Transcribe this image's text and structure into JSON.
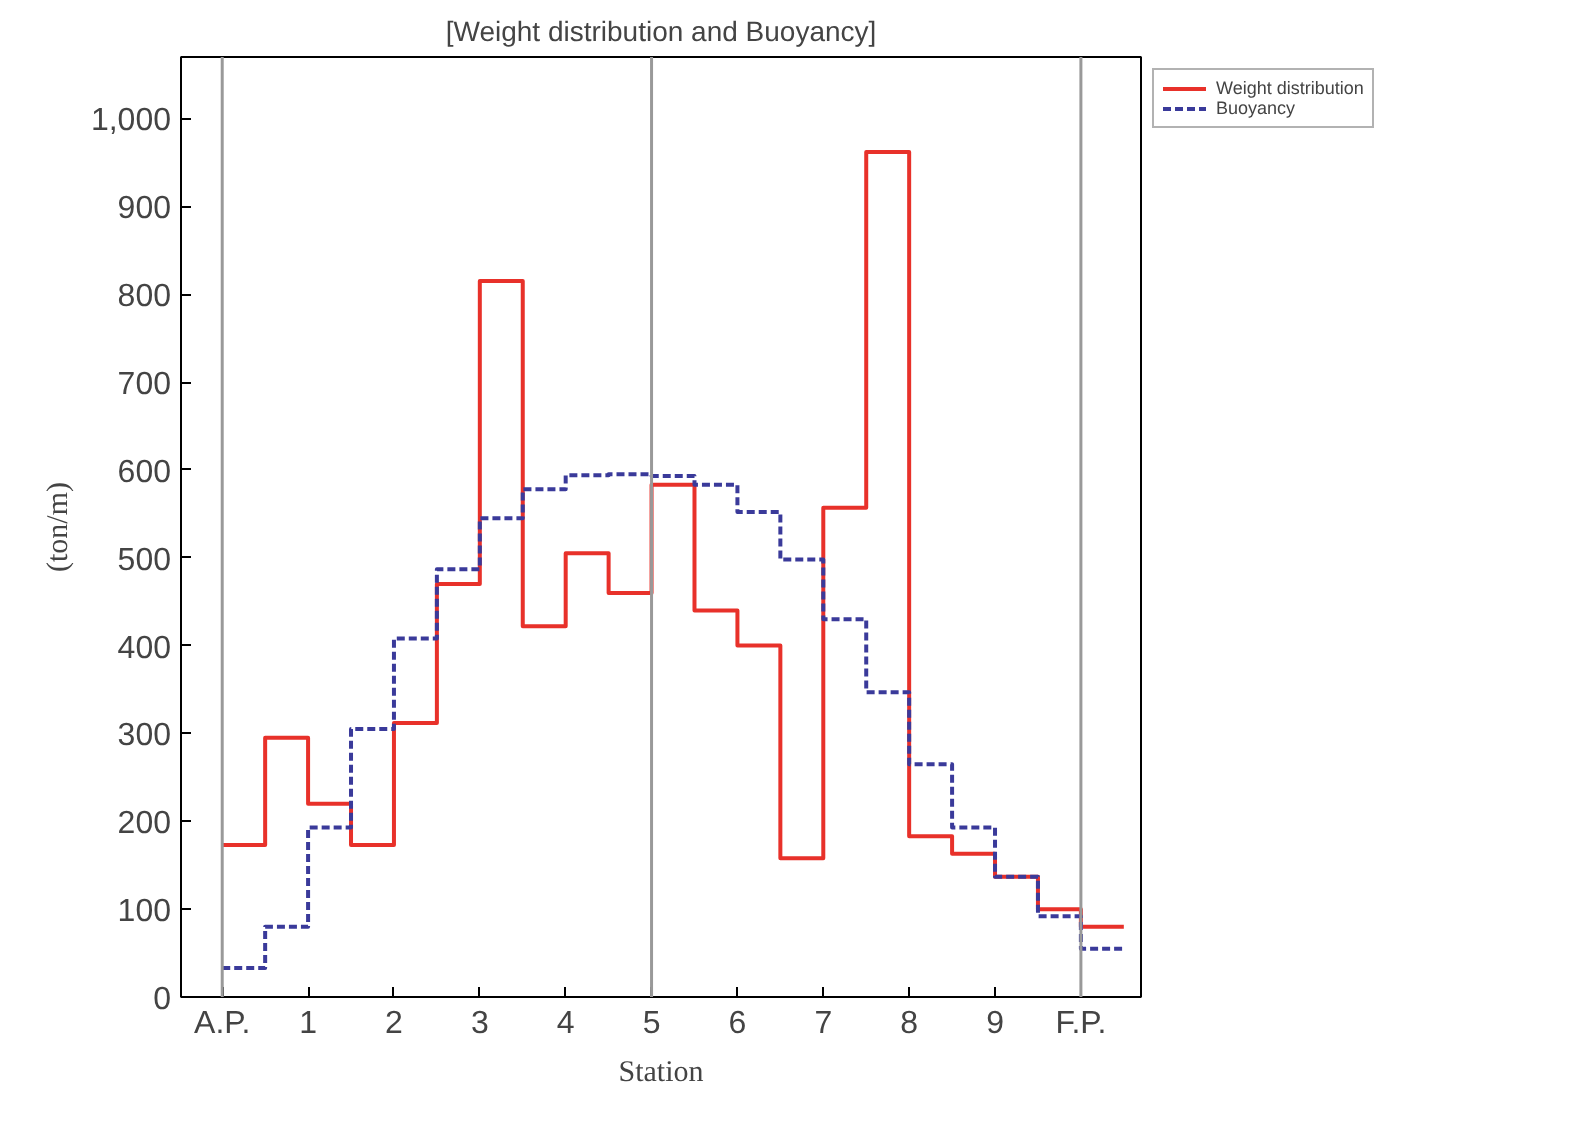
{
  "chart_data": {
    "type": "step",
    "title": "[Weight distribution and Buoyancy]",
    "xlabel": "Station",
    "ylabel": "(ton/m)",
    "xlim": [
      -0.48,
      10.7
    ],
    "ylim": [
      0,
      1070
    ],
    "xticks": [
      {
        "value": 0,
        "label": "A.P."
      },
      1,
      2,
      3,
      4,
      5,
      6,
      7,
      8,
      9,
      {
        "value": 10,
        "label": "F.P."
      }
    ],
    "yticks": [
      0,
      100,
      200,
      300,
      400,
      500,
      600,
      700,
      800,
      900,
      {
        "value": 1000,
        "label": "1,000"
      }
    ],
    "x": [
      0,
      0.5,
      1,
      1.5,
      2,
      2.5,
      3,
      3.5,
      4,
      4.5,
      5,
      5.5,
      6,
      6.5,
      7,
      7.5,
      8,
      8.5,
      9,
      9.5,
      10,
      10.5
    ],
    "series": [
      {
        "name": "Weight distribution",
        "color": "#e8312a",
        "line_style": "solid",
        "values": [
          173,
          295,
          220,
          173,
          312,
          470,
          815,
          422,
          505,
          460,
          583,
          440,
          400,
          158,
          557,
          962,
          183,
          163,
          137,
          100,
          80,
          80
        ]
      },
      {
        "name": "Buoyancy",
        "color": "#3a3a9a",
        "line_style": "dashed",
        "values": [
          33,
          80,
          193,
          305,
          408,
          487,
          545,
          578,
          594,
          595,
          593,
          583,
          552,
          498,
          430,
          347,
          265,
          193,
          137,
          92,
          55,
          55
        ]
      }
    ],
    "ref_lines": [
      {
        "axis": "x",
        "value": 0,
        "color": "#999999"
      },
      {
        "axis": "x",
        "value": 5,
        "color": "#999999"
      },
      {
        "axis": "x",
        "value": 10,
        "color": "#999999"
      }
    ],
    "grid": false,
    "legend": "top right"
  }
}
